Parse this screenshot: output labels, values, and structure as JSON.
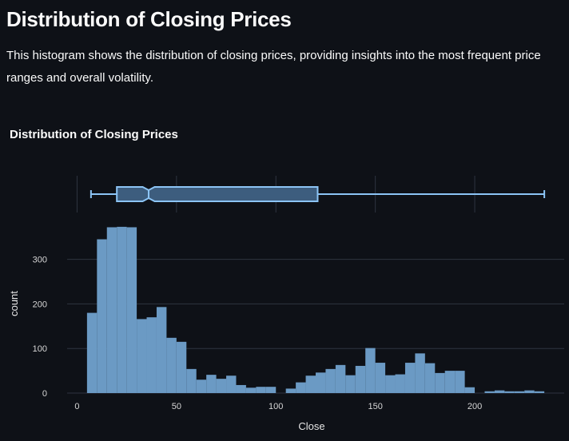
{
  "page": {
    "title": "Distribution of Closing Prices",
    "description": "This histogram shows the distribution of closing prices, providing insights into the most frequent price ranges and overall volatility."
  },
  "chart_data": {
    "type": "histogram",
    "title": "Distribution of Closing Prices",
    "xlabel": "Close",
    "ylabel": "count",
    "xlim": [
      -5,
      245
    ],
    "ylim": [
      0,
      380
    ],
    "xticks": [
      0,
      50,
      100,
      150,
      200
    ],
    "yticks": [
      0,
      100,
      200,
      300
    ],
    "bin_size": 5,
    "bin_start": 5,
    "counts": [
      180,
      345,
      372,
      373,
      372,
      166,
      170,
      193,
      124,
      115,
      54,
      30,
      41,
      32,
      39,
      18,
      12,
      14,
      14,
      0,
      10,
      24,
      39,
      46,
      54,
      63,
      40,
      61,
      101,
      68,
      40,
      42,
      68,
      89,
      67,
      45,
      50,
      50,
      13,
      0,
      4,
      6,
      4,
      4,
      6,
      4
    ],
    "boxplot": {
      "min": 7,
      "q1": 20,
      "median": 36,
      "q3": 121,
      "max": 235,
      "notch_low": 33,
      "notch_high": 39
    },
    "colors": {
      "bar": "#6b9ac4",
      "box_line": "#8cc4f5",
      "box_fill": "#3d5d7e",
      "grid": "#2e3440",
      "background": "#0e1117"
    },
    "grid": true
  }
}
